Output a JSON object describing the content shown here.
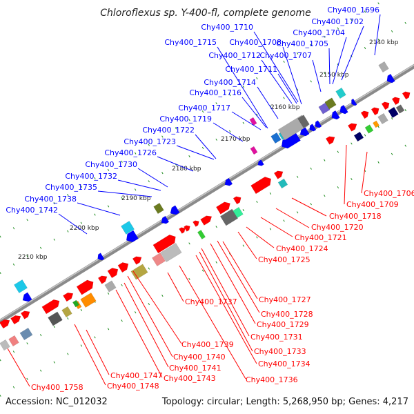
{
  "title": "Chloroflexus sp. Y-400-fl, complete genome",
  "footer": {
    "accession": "Accession: NC_012032",
    "summary": "Topology: circular; Length: 5,268,950 bp; Genes: 4,217"
  },
  "colors": {
    "forward": "#ff0000",
    "reverse": "#0000ff",
    "backbone": "#808080",
    "tick": "#1a8a1a"
  },
  "kbp_ticks": [
    "2140 kbp",
    "2150 kbp",
    "2160 kbp",
    "2170 kbp",
    "2180 kbp",
    "2190 kbp",
    "2200 kbp",
    "2210 kbp"
  ],
  "reverse_labels": [
    "Chy400_1696",
    "Chy400_1702",
    "Chy400_1704",
    "Chy400_1705",
    "Chy400_1707",
    "Chy400_1708",
    "Chy400_1710",
    "Chy400_1711",
    "Chy400_1712",
    "Chy400_1714",
    "Chy400_1715",
    "Chy400_1716",
    "Chy400_1717",
    "Chy400_1719",
    "Chy400_1722",
    "Chy400_1723",
    "Chy400_1726",
    "Chy400_1730",
    "Chy400_1732",
    "Chy400_1735",
    "Chy400_1738",
    "Chy400_1742"
  ],
  "forward_labels": [
    "Chy400_1706",
    "Chy400_1709",
    "Chy400_1718",
    "Chy400_1720",
    "Chy400_1721",
    "Chy400_1724",
    "Chy400_1725",
    "Chy400_1727",
    "Chy400_1728",
    "Chy400_1729",
    "Chy400_1731",
    "Chy400_1733",
    "Chy400_1734",
    "Chy400_1736",
    "Chy400_1737",
    "Chy400_1739",
    "Chy400_1740",
    "Chy400_1741",
    "Chy400_1743",
    "Chy400_1747",
    "Chy400_1748",
    "Chy400_1758"
  ]
}
